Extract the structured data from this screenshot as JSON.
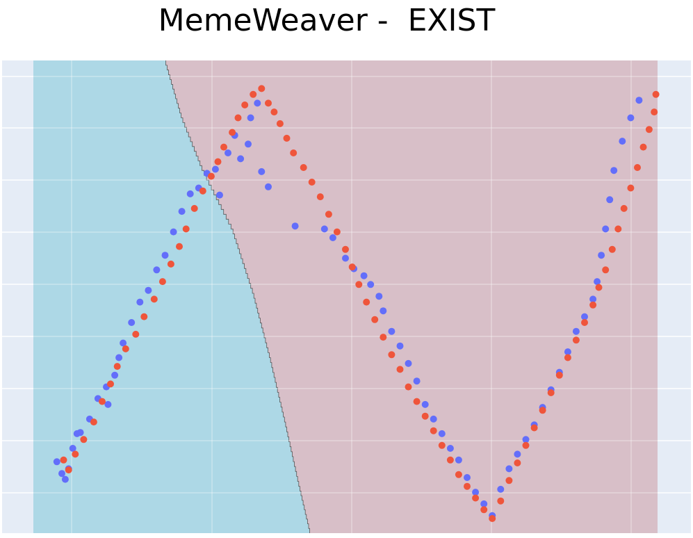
{
  "title": "MemeWeaver -  EXIST",
  "chart_data": {
    "type": "scatter",
    "title": "MemeWeaver -  EXIST",
    "xlabel": "",
    "ylabel": "",
    "xlim": [
      -3.22,
      4.22
    ],
    "ylim": [
      -5.3,
      2.78
    ],
    "grid": true,
    "legend": "none",
    "colors": {
      "background": "#e5ecf6",
      "grid": "#ffffff",
      "region_a": "#add8e6",
      "region_b": "#d8bfc8",
      "boundary": "#555555",
      "series_a": "#636efa",
      "series_b": "#ef553b"
    },
    "regions": [
      {
        "color": "#add8e6",
        "boundary": [
          [
            -1.65,
            2.78
          ],
          [
            -1.45,
            1.8
          ],
          [
            -1.2,
            0.9
          ],
          [
            -0.85,
            -0.1
          ],
          [
            -0.6,
            -1.2
          ],
          [
            -0.4,
            -2.3
          ],
          [
            -0.22,
            -3.4
          ],
          [
            -0.05,
            -4.5
          ],
          [
            0.08,
            -5.3
          ]
        ]
      },
      {
        "color": "#d8bfc8"
      }
    ],
    "series": [
      {
        "name": "",
        "color": "#636efa",
        "points": [
          [
            -2.94,
            -4.08
          ],
          [
            -2.88,
            -4.28
          ],
          [
            -2.84,
            -4.38
          ],
          [
            -2.8,
            -4.2
          ],
          [
            -2.75,
            -3.85
          ],
          [
            -2.7,
            -3.6
          ],
          [
            -2.66,
            -3.58
          ],
          [
            -2.55,
            -3.35
          ],
          [
            -2.45,
            -3.0
          ],
          [
            -2.35,
            -2.8
          ],
          [
            -2.33,
            -3.1
          ],
          [
            -2.25,
            -2.6
          ],
          [
            -2.2,
            -2.3
          ],
          [
            -2.15,
            -2.05
          ],
          [
            -2.05,
            -1.7
          ],
          [
            -1.95,
            -1.35
          ],
          [
            -1.85,
            -1.15
          ],
          [
            -1.75,
            -0.8
          ],
          [
            -1.65,
            -0.55
          ],
          [
            -1.55,
            -0.15
          ],
          [
            -1.45,
            0.2
          ],
          [
            -1.35,
            0.5
          ],
          [
            -1.25,
            0.6
          ],
          [
            -1.15,
            0.85
          ],
          [
            -1.05,
            0.92
          ],
          [
            -1.0,
            0.48
          ],
          [
            -0.9,
            1.2
          ],
          [
            -0.82,
            1.5
          ],
          [
            -0.75,
            1.1
          ],
          [
            -0.66,
            1.35
          ],
          [
            -0.63,
            1.8
          ],
          [
            -0.55,
            2.05
          ],
          [
            -0.5,
            0.88
          ],
          [
            -0.42,
            0.62
          ],
          [
            -0.1,
            -0.05
          ],
          [
            0.25,
            -0.1
          ],
          [
            0.35,
            -0.25
          ],
          [
            0.5,
            -0.6
          ],
          [
            0.6,
            -0.78
          ],
          [
            0.72,
            -0.9
          ],
          [
            0.8,
            -1.05
          ],
          [
            0.9,
            -1.25
          ],
          [
            0.95,
            -1.5
          ],
          [
            1.05,
            -1.85
          ],
          [
            1.15,
            -2.1
          ],
          [
            1.25,
            -2.4
          ],
          [
            1.35,
            -2.7
          ],
          [
            1.45,
            -3.1
          ],
          [
            1.55,
            -3.35
          ],
          [
            1.65,
            -3.6
          ],
          [
            1.75,
            -3.85
          ],
          [
            1.85,
            -4.05
          ],
          [
            1.95,
            -4.35
          ],
          [
            2.05,
            -4.6
          ],
          [
            2.15,
            -4.8
          ],
          [
            2.25,
            -5.0
          ],
          [
            2.35,
            -4.55
          ],
          [
            2.45,
            -4.2
          ],
          [
            2.55,
            -3.95
          ],
          [
            2.65,
            -3.7
          ],
          [
            2.75,
            -3.45
          ],
          [
            2.85,
            -3.15
          ],
          [
            2.95,
            -2.85
          ],
          [
            3.05,
            -2.55
          ],
          [
            3.15,
            -2.2
          ],
          [
            3.25,
            -1.85
          ],
          [
            3.35,
            -1.6
          ],
          [
            3.45,
            -1.3
          ],
          [
            3.5,
            -1.0
          ],
          [
            3.55,
            -0.55
          ],
          [
            3.6,
            -0.1
          ],
          [
            3.65,
            0.4
          ],
          [
            3.7,
            0.9
          ],
          [
            3.8,
            1.4
          ],
          [
            3.9,
            1.8
          ],
          [
            4.0,
            2.1
          ]
        ]
      },
      {
        "name": "",
        "color": "#ef553b",
        "points": [
          [
            -2.86,
            -4.05
          ],
          [
            -2.8,
            -4.22
          ],
          [
            -2.72,
            -3.95
          ],
          [
            -2.62,
            -3.7
          ],
          [
            -2.5,
            -3.4
          ],
          [
            -2.4,
            -3.05
          ],
          [
            -2.3,
            -2.75
          ],
          [
            -2.22,
            -2.45
          ],
          [
            -2.12,
            -2.15
          ],
          [
            -2.0,
            -1.9
          ],
          [
            -1.9,
            -1.6
          ],
          [
            -1.78,
            -1.3
          ],
          [
            -1.68,
            -1.0
          ],
          [
            -1.58,
            -0.7
          ],
          [
            -1.48,
            -0.4
          ],
          [
            -1.4,
            -0.1
          ],
          [
            -1.3,
            0.25
          ],
          [
            -1.2,
            0.55
          ],
          [
            -1.1,
            0.8
          ],
          [
            -1.02,
            1.05
          ],
          [
            -0.95,
            1.3
          ],
          [
            -0.85,
            1.55
          ],
          [
            -0.78,
            1.8
          ],
          [
            -0.7,
            2.02
          ],
          [
            -0.6,
            2.2
          ],
          [
            -0.5,
            2.3
          ],
          [
            -0.42,
            2.05
          ],
          [
            -0.35,
            1.9
          ],
          [
            -0.28,
            1.7
          ],
          [
            -0.2,
            1.45
          ],
          [
            -0.12,
            1.2
          ],
          [
            0.0,
            0.95
          ],
          [
            0.1,
            0.7
          ],
          [
            0.2,
            0.45
          ],
          [
            0.3,
            0.15
          ],
          [
            0.4,
            -0.15
          ],
          [
            0.5,
            -0.45
          ],
          [
            0.58,
            -0.75
          ],
          [
            0.66,
            -1.05
          ],
          [
            0.75,
            -1.35
          ],
          [
            0.85,
            -1.65
          ],
          [
            0.95,
            -1.95
          ],
          [
            1.05,
            -2.25
          ],
          [
            1.15,
            -2.5
          ],
          [
            1.25,
            -2.8
          ],
          [
            1.35,
            -3.05
          ],
          [
            1.45,
            -3.3
          ],
          [
            1.55,
            -3.55
          ],
          [
            1.65,
            -3.8
          ],
          [
            1.75,
            -4.05
          ],
          [
            1.85,
            -4.3
          ],
          [
            1.95,
            -4.5
          ],
          [
            2.05,
            -4.7
          ],
          [
            2.15,
            -4.9
          ],
          [
            2.25,
            -5.05
          ],
          [
            2.35,
            -4.75
          ],
          [
            2.45,
            -4.4
          ],
          [
            2.55,
            -4.1
          ],
          [
            2.65,
            -3.8
          ],
          [
            2.75,
            -3.5
          ],
          [
            2.85,
            -3.2
          ],
          [
            2.95,
            -2.9
          ],
          [
            3.05,
            -2.6
          ],
          [
            3.15,
            -2.3
          ],
          [
            3.25,
            -2.0
          ],
          [
            3.35,
            -1.7
          ],
          [
            3.45,
            -1.4
          ],
          [
            3.52,
            -1.1
          ],
          [
            3.6,
            -0.8
          ],
          [
            3.68,
            -0.45
          ],
          [
            3.75,
            -0.1
          ],
          [
            3.82,
            0.25
          ],
          [
            3.9,
            0.6
          ],
          [
            3.98,
            0.95
          ],
          [
            4.05,
            1.3
          ],
          [
            4.12,
            1.6
          ],
          [
            4.18,
            1.9
          ],
          [
            4.2,
            2.2
          ]
        ]
      }
    ]
  }
}
